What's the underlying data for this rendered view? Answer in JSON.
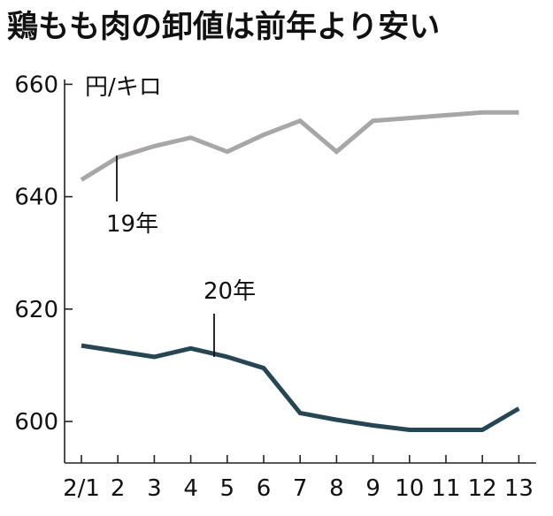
{
  "chart_data": {
    "type": "line",
    "title": "鶏もも肉の卸値は前年より安い",
    "ylabel": "円/キロ",
    "categories": [
      "2/1",
      "2",
      "3",
      "4",
      "5",
      "6",
      "7",
      "8",
      "9",
      "10",
      "11",
      "12",
      "13"
    ],
    "ylim": [
      592,
      660
    ],
    "yticks": [
      600,
      620,
      640,
      660
    ],
    "grid": false,
    "series": [
      {
        "name": "19年",
        "color": "#a8a6a6",
        "values": [
          643,
          647,
          649,
          650.5,
          648,
          651,
          653.5,
          648,
          653.5,
          654,
          654.5,
          655,
          655
        ]
      },
      {
        "name": "20年",
        "color": "#264653",
        "values": [
          613.5,
          612.5,
          611.5,
          613,
          611.5,
          609.5,
          601.5,
          600.3,
          599.3,
          598.5,
          598.5,
          598.5,
          602.3
        ]
      }
    ],
    "annotations": [
      {
        "series": 0,
        "text": "19年",
        "x_index": 1
      },
      {
        "series": 1,
        "text": "20年",
        "x_index": 4
      }
    ]
  }
}
